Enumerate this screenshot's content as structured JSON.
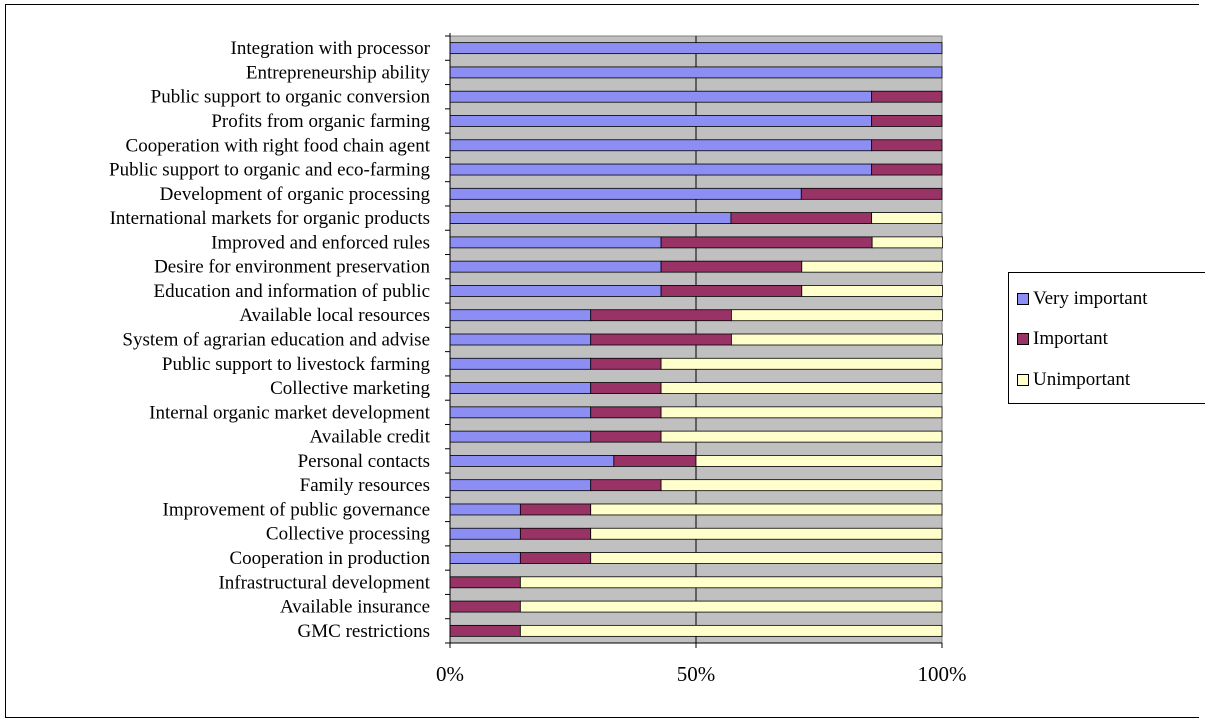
{
  "chart_data": {
    "type": "bar",
    "orientation": "horizontal",
    "stacked": "percent",
    "categories": [
      "Integration with processor",
      "Entrepreneurship ability",
      "Public support to organic conversion",
      "Profits from organic farming",
      "Cooperation with right food chain agent",
      "Public support to organic and eco-farming",
      "Development of organic processing",
      "International markets for organic products",
      "Improved and enforced rules",
      "Desire for environment preservation",
      "Education and information of public",
      "Available local resources",
      "System of agrarian education and advise",
      "Public support to livestock farming",
      "Collective marketing",
      "Internal organic market development",
      "Available credit",
      "Personal contacts",
      "Family resources",
      "Improvement of public governance",
      "Collective processing",
      "Cooperation in production",
      "Infrastructural development",
      "Available insurance",
      "GMC restrictions"
    ],
    "series": [
      {
        "name": "Very important",
        "color": "#8d8ef4",
        "values": [
          100,
          100,
          85.7,
          85.7,
          85.7,
          85.7,
          71.4,
          57.1,
          42.9,
          42.9,
          42.9,
          28.6,
          28.6,
          28.6,
          28.6,
          28.6,
          28.6,
          33.3,
          28.6,
          14.3,
          14.3,
          14.3,
          0,
          0,
          0
        ]
      },
      {
        "name": "Important",
        "color": "#993366",
        "values": [
          0,
          0,
          14.3,
          14.3,
          14.3,
          14.3,
          28.6,
          28.6,
          42.9,
          28.6,
          28.6,
          28.6,
          28.6,
          14.3,
          14.3,
          14.3,
          14.3,
          16.7,
          14.3,
          14.3,
          14.3,
          14.3,
          14.3,
          14.3,
          14.3
        ]
      },
      {
        "name": "Unimportant",
        "color": "#ffffcc",
        "values": [
          0,
          0,
          0,
          0,
          0,
          0,
          0,
          14.3,
          14.3,
          28.6,
          28.6,
          42.9,
          42.9,
          57.1,
          57.1,
          57.1,
          57.1,
          50.0,
          57.1,
          71.4,
          71.4,
          71.4,
          85.7,
          85.7,
          85.7
        ]
      }
    ],
    "x_ticks": [
      "0%",
      "50%",
      "100%"
    ],
    "xlim": [
      0,
      100
    ],
    "plot_background": "#c0c0c0",
    "grid": true,
    "legend_position": "right"
  }
}
